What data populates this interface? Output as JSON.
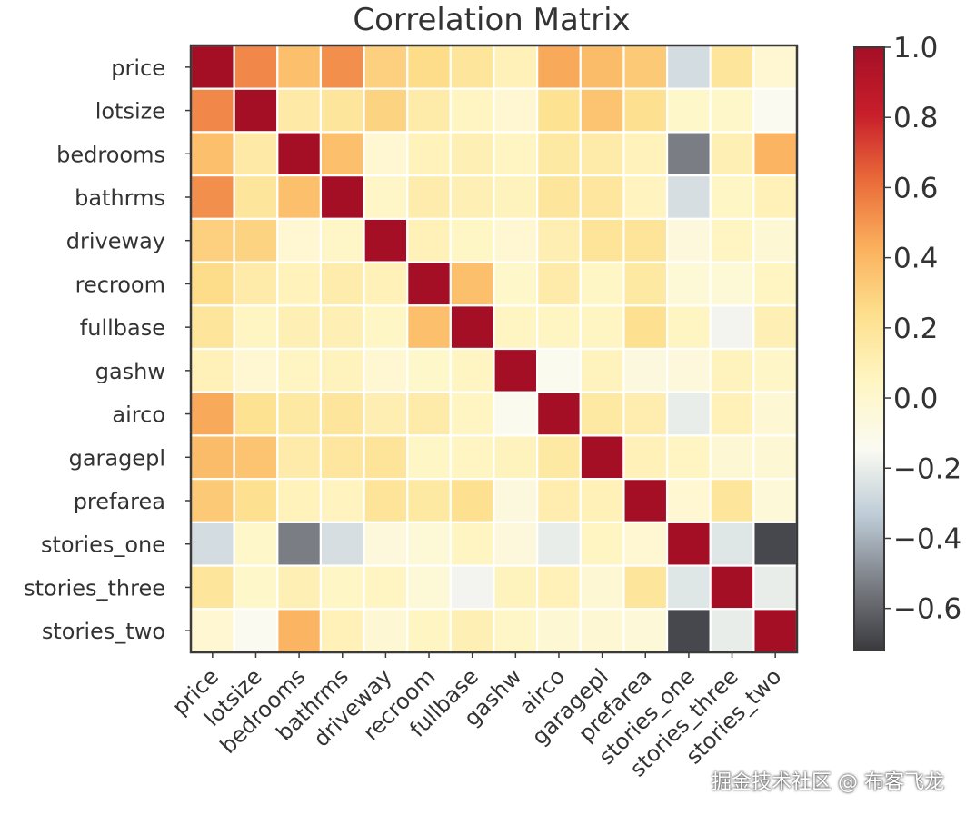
{
  "chart_data": {
    "type": "heatmap",
    "title": "Correlation Matrix",
    "labels": [
      "price",
      "lotsize",
      "bedrooms",
      "bathrms",
      "driveway",
      "recroom",
      "fullbase",
      "gashw",
      "airco",
      "garagepl",
      "prefarea",
      "stories_one",
      "stories_three",
      "stories_two"
    ],
    "matrix": [
      [
        1.0,
        0.54,
        0.37,
        0.52,
        0.3,
        0.25,
        0.19,
        0.09,
        0.45,
        0.38,
        0.33,
        -0.27,
        0.19,
        -0.01
      ],
      [
        0.54,
        1.0,
        0.15,
        0.19,
        0.29,
        0.14,
        0.05,
        -0.01,
        0.22,
        0.35,
        0.23,
        0.02,
        0.02,
        -0.14
      ],
      [
        0.37,
        0.15,
        1.0,
        0.37,
        -0.01,
        0.08,
        0.1,
        0.05,
        0.16,
        0.14,
        0.08,
        -0.53,
        0.1,
        0.41
      ],
      [
        0.52,
        0.19,
        0.37,
        1.0,
        0.03,
        0.13,
        0.1,
        0.07,
        0.19,
        0.18,
        0.06,
        -0.26,
        0.04,
        0.09
      ],
      [
        0.3,
        0.29,
        -0.01,
        0.03,
        1.0,
        0.09,
        0.04,
        -0.01,
        0.11,
        0.2,
        0.2,
        -0.05,
        0.05,
        -0.02
      ],
      [
        0.25,
        0.14,
        0.08,
        0.13,
        0.09,
        1.0,
        0.37,
        0.02,
        0.14,
        0.04,
        0.16,
        -0.03,
        -0.03,
        0.05
      ],
      [
        0.19,
        0.05,
        0.1,
        0.1,
        0.04,
        0.37,
        1.0,
        0.05,
        0.05,
        0.05,
        0.23,
        0.05,
        -0.17,
        0.1
      ],
      [
        0.09,
        -0.01,
        0.05,
        0.07,
        -0.01,
        0.02,
        0.05,
        1.0,
        -0.13,
        0.07,
        -0.06,
        -0.05,
        0.07,
        0.03
      ],
      [
        0.45,
        0.22,
        0.16,
        0.19,
        0.11,
        0.14,
        0.05,
        -0.13,
        1.0,
        0.16,
        0.12,
        -0.2,
        0.09,
        -0.02
      ],
      [
        0.38,
        0.35,
        0.14,
        0.18,
        0.2,
        0.04,
        0.05,
        0.07,
        0.16,
        1.0,
        0.09,
        0.05,
        -0.02,
        -0.02
      ],
      [
        0.33,
        0.23,
        0.08,
        0.06,
        0.2,
        0.16,
        0.23,
        -0.06,
        0.12,
        0.09,
        1.0,
        -0.01,
        0.19,
        -0.04
      ],
      [
        -0.27,
        0.02,
        -0.53,
        -0.26,
        -0.05,
        -0.03,
        0.05,
        -0.05,
        -0.2,
        0.05,
        -0.01,
        1.0,
        -0.23,
        -0.68
      ],
      [
        0.19,
        0.02,
        0.1,
        0.04,
        0.05,
        -0.03,
        -0.17,
        0.07,
        0.09,
        -0.02,
        0.19,
        -0.23,
        1.0,
        -0.2
      ],
      [
        -0.01,
        -0.14,
        0.41,
        0.09,
        -0.02,
        0.05,
        0.1,
        0.03,
        -0.02,
        -0.02,
        -0.04,
        -0.68,
        -0.2,
        1.0
      ]
    ],
    "vmin": -0.72,
    "vmax": 1.0,
    "colorbar_ticks": [
      1.0,
      0.8,
      0.6,
      0.4,
      0.2,
      0.0,
      -0.2,
      -0.4,
      -0.6
    ],
    "colorbar_tick_labels": [
      "1.0",
      "0.8",
      "0.6",
      "0.4",
      "0.2",
      "0.0",
      "−0.2",
      "−0.4",
      "−0.6"
    ],
    "colormap": [
      "#3a3a3e",
      "#7a7d84",
      "#bdcbd6",
      "#fafaf2",
      "#fff6c4",
      "#fde08e",
      "#fbb15e",
      "#ea6c3a",
      "#c81e2b",
      "#a50f26"
    ],
    "grid_line_color": "#ffffff",
    "frame_color": "#3a3a3a"
  },
  "watermark": "掘金技术社区 @ 布客飞龙"
}
